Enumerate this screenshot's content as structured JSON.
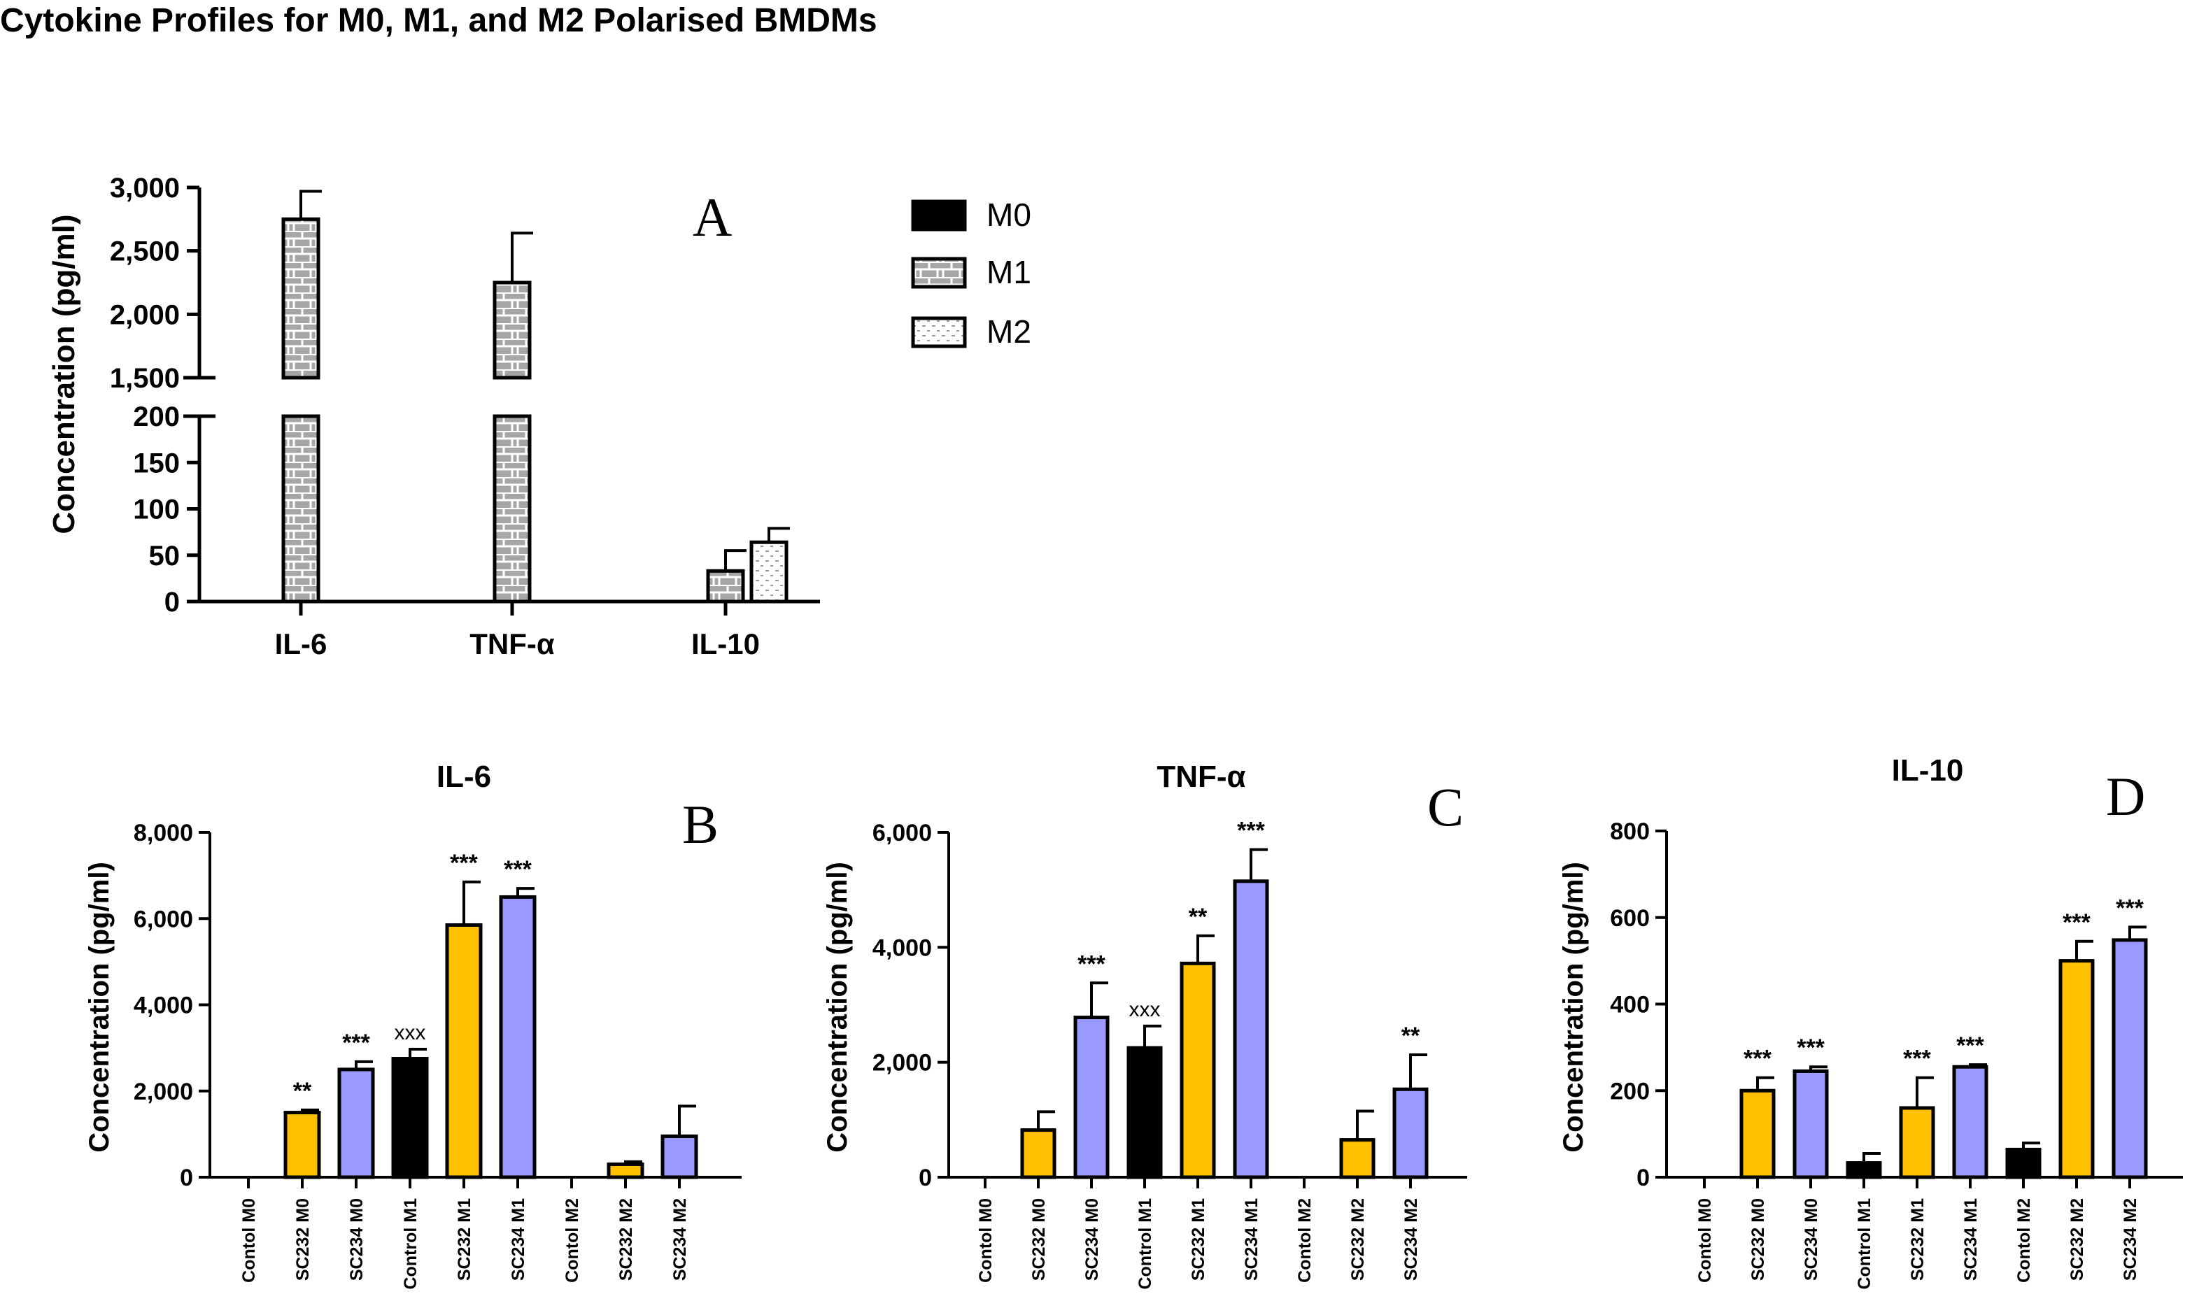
{
  "figure": {
    "title": "Cytokine Profiles for M0, M1, and M2 Polarised BMDMs"
  },
  "chart_data": [
    {
      "panel": "A",
      "type": "bar",
      "title": "",
      "ylabel": "Concentration (pg/ml)",
      "xlabel": "",
      "categories": [
        "IL-6",
        "TNF-α",
        "IL-10"
      ],
      "y_axis_break": {
        "lower_segment": [
          0,
          200
        ],
        "upper_segment": [
          1500,
          3000
        ]
      },
      "lower_ticks": [
        "0",
        "50",
        "100",
        "150",
        "200"
      ],
      "upper_ticks": [
        "1,500",
        "2,000",
        "2,500",
        "3,000"
      ],
      "legend": {
        "position": "right",
        "entries": [
          "M0",
          "M1",
          "M2"
        ]
      },
      "series": [
        {
          "name": "M0",
          "values": [
            0,
            0,
            0
          ],
          "errors": [
            0,
            0,
            0
          ],
          "fill": "solid-black"
        },
        {
          "name": "M1",
          "values": [
            2750,
            2250,
            33
          ],
          "errors": [
            220,
            390,
            22
          ],
          "fill": "grey-brick"
        },
        {
          "name": "M2",
          "values": [
            0,
            0,
            64
          ],
          "errors": [
            0,
            0,
            15
          ],
          "fill": "white-dotted"
        }
      ]
    },
    {
      "panel": "B",
      "type": "bar",
      "title": "IL-6",
      "ylabel": "Concentration (pg/ml)",
      "ylim": [
        0,
        8000
      ],
      "yticks": [
        "0",
        "2,000",
        "4,000",
        "6,000",
        "8,000"
      ],
      "categories": [
        "Contol M0",
        "SC232 M0",
        "SC234 M0",
        "Control M1",
        "SC232 M1",
        "SC234 M1",
        "Contol M2",
        "SC232 M2",
        "SC234 M2"
      ],
      "values": [
        0,
        1500,
        2500,
        2750,
        5850,
        6500,
        0,
        300,
        950
      ],
      "errors": [
        0,
        60,
        180,
        220,
        1000,
        200,
        0,
        60,
        700
      ],
      "annotations": [
        "",
        "**",
        "***",
        "xxx",
        "***",
        "***",
        "",
        "",
        ""
      ]
    },
    {
      "panel": "C",
      "type": "bar",
      "title": "TNF-α",
      "ylabel": "Concentration (pg/ml)",
      "ylim": [
        0,
        6000
      ],
      "yticks": [
        "0",
        "2,000",
        "4,000",
        "6,000"
      ],
      "categories": [
        "Contol M0",
        "SC232 M0",
        "SC234 M0",
        "Control M1",
        "SC232 M1",
        "SC234 M1",
        "Contol M2",
        "SC232 M2",
        "SC234 M2"
      ],
      "values": [
        0,
        820,
        2780,
        2250,
        3720,
        5150,
        0,
        650,
        1530
      ],
      "errors": [
        0,
        320,
        600,
        380,
        480,
        550,
        0,
        500,
        600
      ],
      "annotations": [
        "",
        "",
        "***",
        "xxx",
        "**",
        "***",
        "",
        "",
        "**"
      ]
    },
    {
      "panel": "D",
      "type": "bar",
      "title": "IL-10",
      "ylabel": "Concentration (pg/ml)",
      "ylim": [
        0,
        800
      ],
      "yticks": [
        "0",
        "200",
        "400",
        "600",
        "800"
      ],
      "categories": [
        "Contol M0",
        "SC232 M0",
        "SC234 M0",
        "Control M1",
        "SC232 M1",
        "SC234 M1",
        "Contol M2",
        "SC232 M2",
        "SC234 M2"
      ],
      "values": [
        0,
        200,
        245,
        33,
        160,
        255,
        64,
        500,
        548
      ],
      "errors": [
        0,
        30,
        10,
        22,
        70,
        5,
        15,
        45,
        30
      ],
      "annotations": [
        "",
        "***",
        "***",
        "",
        "***",
        "***",
        "",
        "***",
        "***"
      ]
    }
  ],
  "colors": {
    "control": "#000000",
    "sc232": "#FFC000",
    "sc234": "#9999FF",
    "m1_fill": "#A6A6A6",
    "axis": "#000000"
  }
}
